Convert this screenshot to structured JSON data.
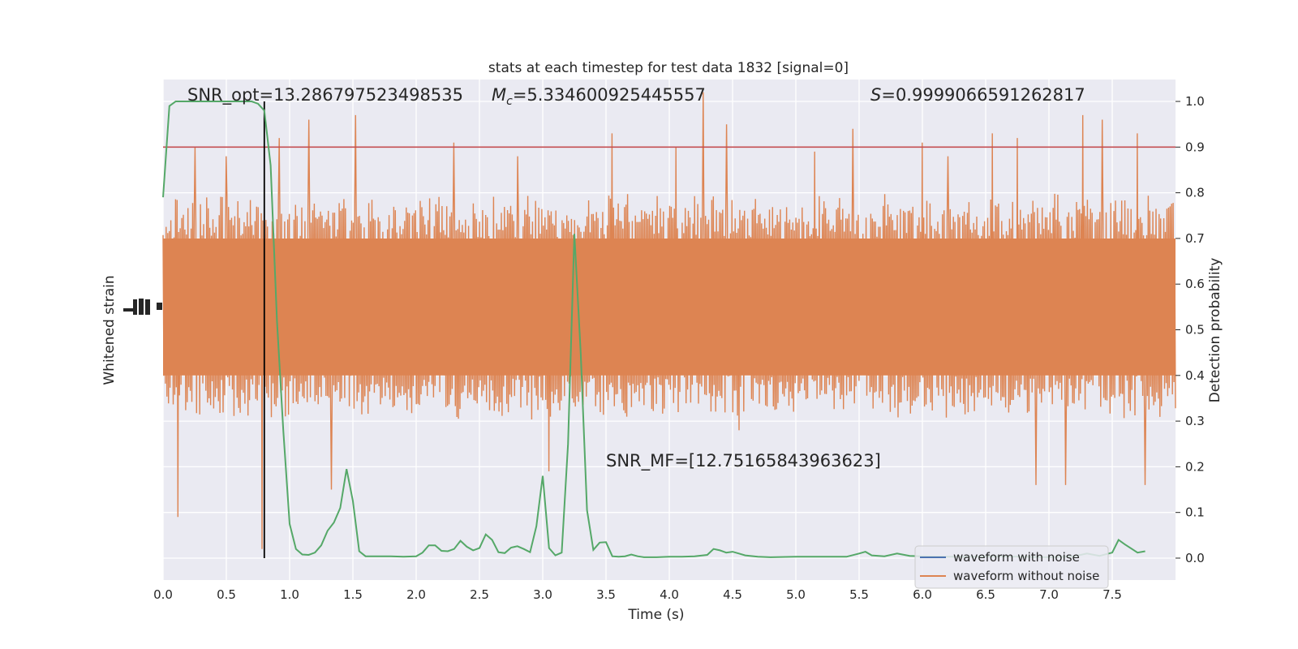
{
  "chart_data": {
    "type": "line",
    "title": "stats at each timestep for test data 1832 [signal=0]",
    "xlabel": "Time (s)",
    "ylabel_left": "Whitened strain",
    "ylabel_right": "Detection probability",
    "xlim": [
      0.0,
      8.0
    ],
    "ylim_right": [
      -0.048,
      1.048
    ],
    "x_ticks": [
      "0.0",
      "0.5",
      "1.0",
      "1.5",
      "2.0",
      "2.5",
      "3.0",
      "3.5",
      "4.0",
      "4.5",
      "5.0",
      "5.5",
      "6.0",
      "6.5",
      "7.0",
      "7.5"
    ],
    "y_ticks_right": [
      "0.0",
      "0.1",
      "0.2",
      "0.3",
      "0.4",
      "0.5",
      "0.6",
      "0.7",
      "0.8",
      "0.9",
      "1.0"
    ],
    "grid": true,
    "legend_position": "bottom-right",
    "legend": [
      {
        "label": "waveform with noise",
        "color": "#4c72b0"
      },
      {
        "label": "waveform without noise",
        "color": "#dd8452"
      }
    ],
    "annotations": {
      "snr_opt": "SNR_opt=13.286797523498535",
      "mc_prefix": "M",
      "mc_sub": "c",
      "mc_value": "=5.334600925445557",
      "s_prefix": "S",
      "s_value": "=0.9999066591262817",
      "snr_mf": "SNR_MF=[12.75165843963623]"
    },
    "threshold": {
      "y": 0.9,
      "color": "#c44e52"
    },
    "marker_time": 0.8,
    "probability_series": {
      "name": "Detection probability",
      "color": "#55a868",
      "points": [
        [
          0.0,
          0.79
        ],
        [
          0.05,
          0.99
        ],
        [
          0.1,
          1.0
        ],
        [
          0.2,
          1.0
        ],
        [
          0.3,
          1.0
        ],
        [
          0.4,
          1.0
        ],
        [
          0.5,
          1.0
        ],
        [
          0.6,
          1.0
        ],
        [
          0.7,
          1.0
        ],
        [
          0.75,
          0.995
        ],
        [
          0.8,
          0.98
        ],
        [
          0.85,
          0.86
        ],
        [
          0.9,
          0.52
        ],
        [
          0.95,
          0.28
        ],
        [
          1.0,
          0.075
        ],
        [
          1.05,
          0.02
        ],
        [
          1.1,
          0.008
        ],
        [
          1.15,
          0.007
        ],
        [
          1.2,
          0.012
        ],
        [
          1.25,
          0.028
        ],
        [
          1.3,
          0.06
        ],
        [
          1.35,
          0.078
        ],
        [
          1.4,
          0.11
        ],
        [
          1.45,
          0.195
        ],
        [
          1.5,
          0.125
        ],
        [
          1.55,
          0.015
        ],
        [
          1.6,
          0.004
        ],
        [
          1.7,
          0.004
        ],
        [
          1.8,
          0.004
        ],
        [
          1.9,
          0.003
        ],
        [
          2.0,
          0.004
        ],
        [
          2.05,
          0.012
        ],
        [
          2.1,
          0.028
        ],
        [
          2.15,
          0.028
        ],
        [
          2.2,
          0.016
        ],
        [
          2.25,
          0.015
        ],
        [
          2.3,
          0.02
        ],
        [
          2.35,
          0.038
        ],
        [
          2.4,
          0.025
        ],
        [
          2.45,
          0.017
        ],
        [
          2.5,
          0.022
        ],
        [
          2.55,
          0.052
        ],
        [
          2.6,
          0.04
        ],
        [
          2.65,
          0.013
        ],
        [
          2.7,
          0.011
        ],
        [
          2.75,
          0.023
        ],
        [
          2.8,
          0.026
        ],
        [
          2.85,
          0.02
        ],
        [
          2.9,
          0.013
        ],
        [
          2.95,
          0.07
        ],
        [
          3.0,
          0.18
        ],
        [
          3.05,
          0.022
        ],
        [
          3.1,
          0.006
        ],
        [
          3.15,
          0.012
        ],
        [
          3.2,
          0.25
        ],
        [
          3.25,
          0.71
        ],
        [
          3.3,
          0.45
        ],
        [
          3.35,
          0.105
        ],
        [
          3.4,
          0.018
        ],
        [
          3.45,
          0.034
        ],
        [
          3.5,
          0.035
        ],
        [
          3.55,
          0.004
        ],
        [
          3.6,
          0.003
        ],
        [
          3.65,
          0.004
        ],
        [
          3.7,
          0.008
        ],
        [
          3.75,
          0.004
        ],
        [
          3.8,
          0.002
        ],
        [
          3.9,
          0.002
        ],
        [
          4.0,
          0.003
        ],
        [
          4.1,
          0.003
        ],
        [
          4.2,
          0.004
        ],
        [
          4.3,
          0.007
        ],
        [
          4.35,
          0.02
        ],
        [
          4.4,
          0.017
        ],
        [
          4.45,
          0.012
        ],
        [
          4.5,
          0.014
        ],
        [
          4.55,
          0.01
        ],
        [
          4.6,
          0.006
        ],
        [
          4.7,
          0.003
        ],
        [
          4.8,
          0.002
        ],
        [
          5.0,
          0.003
        ],
        [
          5.2,
          0.003
        ],
        [
          5.4,
          0.003
        ],
        [
          5.5,
          0.01
        ],
        [
          5.55,
          0.014
        ],
        [
          5.6,
          0.006
        ],
        [
          5.7,
          0.004
        ],
        [
          5.8,
          0.01
        ],
        [
          5.9,
          0.005
        ],
        [
          6.0,
          0.004
        ],
        [
          6.2,
          0.003
        ],
        [
          6.4,
          0.003
        ],
        [
          6.6,
          0.004
        ],
        [
          6.8,
          0.003
        ],
        [
          7.0,
          0.002
        ],
        [
          7.2,
          0.004
        ],
        [
          7.3,
          0.01
        ],
        [
          7.4,
          0.005
        ],
        [
          7.5,
          0.012
        ],
        [
          7.55,
          0.04
        ],
        [
          7.6,
          0.03
        ],
        [
          7.7,
          0.012
        ],
        [
          7.76,
          0.015
        ]
      ]
    },
    "strain_series": {
      "name": "waveform without noise",
      "color": "#dd8452",
      "time_range": [
        0.0,
        8.0
      ],
      "baseline": 0.55,
      "typical_half_amplitude": 0.22,
      "spikes": [
        [
          0.12,
          0.09
        ],
        [
          0.25,
          0.9
        ],
        [
          0.5,
          0.88
        ],
        [
          0.78,
          0.02
        ],
        [
          0.92,
          0.92
        ],
        [
          1.15,
          0.96
        ],
        [
          1.33,
          0.15
        ],
        [
          1.52,
          0.97
        ],
        [
          2.3,
          0.91
        ],
        [
          2.8,
          0.88
        ],
        [
          3.05,
          0.19
        ],
        [
          3.55,
          0.93
        ],
        [
          4.05,
          0.9
        ],
        [
          4.27,
          1.02
        ],
        [
          4.45,
          0.95
        ],
        [
          4.55,
          0.28
        ],
        [
          5.15,
          0.89
        ],
        [
          5.45,
          0.94
        ],
        [
          6.0,
          0.91
        ],
        [
          6.2,
          0.88
        ],
        [
          6.55,
          0.93
        ],
        [
          6.75,
          0.92
        ],
        [
          6.9,
          0.16
        ],
        [
          7.13,
          0.16
        ],
        [
          7.27,
          0.97
        ],
        [
          7.42,
          0.96
        ],
        [
          7.7,
          0.93
        ],
        [
          7.76,
          0.16
        ]
      ]
    }
  }
}
